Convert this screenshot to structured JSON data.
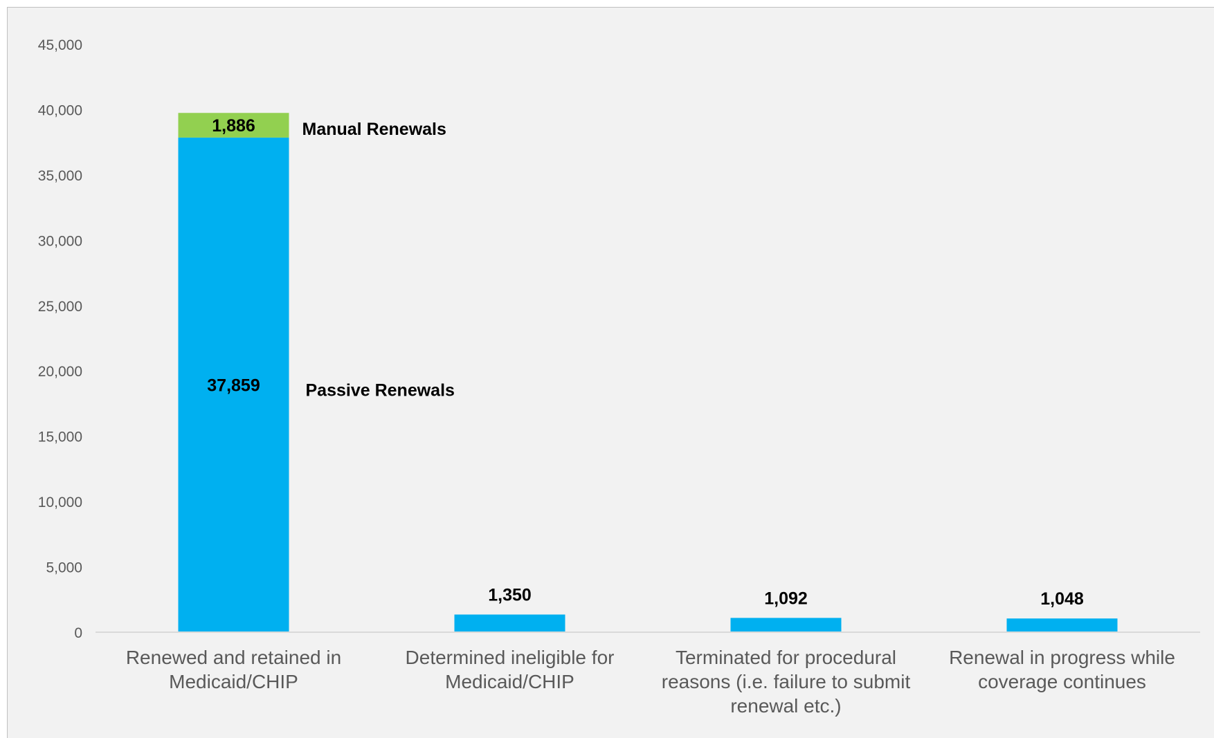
{
  "chart_data": {
    "type": "bar",
    "stacked": true,
    "categories": [
      [
        "Renewed and retained in",
        "Medicaid/CHIP"
      ],
      [
        "Determined ineligible for",
        "Medicaid/CHIP"
      ],
      [
        "Terminated for procedural",
        "reasons (i.e. failure to submit",
        "renewal etc.)"
      ],
      [
        "Renewal in progress while",
        "coverage continues"
      ]
    ],
    "series": [
      {
        "name": "Passive Renewals",
        "color": "#00b0f0",
        "values": [
          37859,
          1350,
          1092,
          1048
        ],
        "labels": [
          "37,859",
          "1,350",
          "1,092",
          "1,048"
        ]
      },
      {
        "name": "Manual Renewals",
        "color": "#92d050",
        "values": [
          1886,
          0,
          0,
          0
        ],
        "labels": [
          "1,886",
          "",
          "",
          ""
        ]
      }
    ],
    "ylim": [
      0,
      45000
    ],
    "yticks": [
      0,
      5000,
      10000,
      15000,
      20000,
      25000,
      30000,
      35000,
      40000,
      45000
    ],
    "ytick_labels": [
      "0",
      "5,000",
      "10,000",
      "15,000",
      "20,000",
      "25,000",
      "30,000",
      "35,000",
      "40,000",
      "45,000"
    ],
    "annotations": [
      "Passive Renewals",
      "Manual Renewals"
    ],
    "grid": false,
    "legend": "none"
  }
}
